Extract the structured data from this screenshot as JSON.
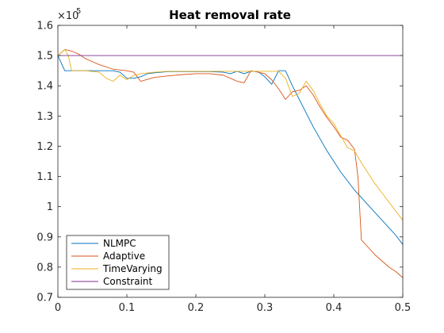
{
  "chart_data": {
    "type": "line",
    "title": "Heat removal rate",
    "xlabel": "",
    "ylabel": "",
    "xlim": [
      0,
      0.5
    ],
    "ylim": [
      0.7,
      1.6
    ],
    "y_exponent_label": "×10",
    "y_exponent_power": "5",
    "xticks": [
      "0",
      "0.1",
      "0.2",
      "0.3",
      "0.4",
      "0.5"
    ],
    "xtick_values": [
      0,
      0.1,
      0.2,
      0.3,
      0.4,
      0.5
    ],
    "yticks": [
      "0.7",
      "0.8",
      "0.9",
      "1",
      "1.1",
      "1.2",
      "1.3",
      "1.4",
      "1.5",
      "1.6"
    ],
    "ytick_values": [
      0.7,
      0.8,
      0.9,
      1.0,
      1.1,
      1.2,
      1.3,
      1.4,
      1.5,
      1.6
    ],
    "grid": false,
    "legend_position": "bottom-left",
    "series": [
      {
        "name": "NLMPC",
        "color": "#0072BD",
        "x": [
          0,
          0.01,
          0.02,
          0.04,
          0.06,
          0.08,
          0.09,
          0.1,
          0.11,
          0.12,
          0.13,
          0.14,
          0.16,
          0.18,
          0.2,
          0.22,
          0.24,
          0.25,
          0.26,
          0.27,
          0.28,
          0.29,
          0.3,
          0.31,
          0.32,
          0.33,
          0.34,
          0.35,
          0.36,
          0.37,
          0.38,
          0.39,
          0.4,
          0.41,
          0.42,
          0.43,
          0.44,
          0.45,
          0.46,
          0.47,
          0.48,
          0.49,
          0.5
        ],
        "y": [
          1.5,
          1.45,
          1.45,
          1.45,
          1.45,
          1.45,
          1.445,
          1.425,
          1.425,
          1.43,
          1.44,
          1.443,
          1.447,
          1.447,
          1.447,
          1.447,
          1.445,
          1.44,
          1.448,
          1.44,
          1.448,
          1.447,
          1.43,
          1.405,
          1.45,
          1.45,
          1.4,
          1.355,
          1.31,
          1.265,
          1.225,
          1.185,
          1.15,
          1.115,
          1.085,
          1.055,
          1.03,
          1.005,
          0.98,
          0.955,
          0.93,
          0.905,
          0.875
        ]
      },
      {
        "name": "Adaptive",
        "color": "#D95319",
        "x": [
          0,
          0.01,
          0.02,
          0.03,
          0.04,
          0.05,
          0.06,
          0.08,
          0.1,
          0.11,
          0.12,
          0.14,
          0.16,
          0.18,
          0.2,
          0.22,
          0.24,
          0.25,
          0.26,
          0.27,
          0.28,
          0.29,
          0.3,
          0.31,
          0.32,
          0.33,
          0.34,
          0.35,
          0.36,
          0.37,
          0.38,
          0.39,
          0.4,
          0.41,
          0.42,
          0.43,
          0.435,
          0.44,
          0.45,
          0.46,
          0.47,
          0.48,
          0.49,
          0.5
        ],
        "y": [
          1.5,
          1.52,
          1.515,
          1.505,
          1.49,
          1.48,
          1.47,
          1.455,
          1.45,
          1.445,
          1.415,
          1.428,
          1.433,
          1.437,
          1.44,
          1.44,
          1.435,
          1.425,
          1.415,
          1.41,
          1.45,
          1.445,
          1.44,
          1.42,
          1.39,
          1.355,
          1.38,
          1.385,
          1.4,
          1.37,
          1.33,
          1.295,
          1.265,
          1.23,
          1.22,
          1.19,
          1.1,
          0.89,
          0.865,
          0.84,
          0.82,
          0.8,
          0.785,
          0.765
        ]
      },
      {
        "name": "TimeVarying",
        "color": "#EDB120",
        "x": [
          0,
          0.005,
          0.01,
          0.015,
          0.02,
          0.03,
          0.04,
          0.06,
          0.07,
          0.08,
          0.09,
          0.1,
          0.11,
          0.12,
          0.14,
          0.16,
          0.18,
          0.2,
          0.22,
          0.24,
          0.26,
          0.28,
          0.3,
          0.32,
          0.33,
          0.34,
          0.35,
          0.36,
          0.37,
          0.38,
          0.39,
          0.4,
          0.41,
          0.42,
          0.43,
          0.44,
          0.45,
          0.46,
          0.47,
          0.48,
          0.49,
          0.5
        ],
        "y": [
          1.5,
          1.51,
          1.52,
          1.5,
          1.45,
          1.45,
          1.45,
          1.445,
          1.425,
          1.415,
          1.435,
          1.42,
          1.435,
          1.44,
          1.445,
          1.448,
          1.448,
          1.448,
          1.448,
          1.448,
          1.448,
          1.448,
          1.448,
          1.448,
          1.425,
          1.365,
          1.375,
          1.415,
          1.385,
          1.34,
          1.3,
          1.275,
          1.235,
          1.195,
          1.185,
          1.145,
          1.11,
          1.075,
          1.045,
          1.015,
          0.985,
          0.955
        ]
      },
      {
        "name": "Constraint",
        "color": "#7E2F8E",
        "x": [
          0,
          0.5
        ],
        "y": [
          1.5,
          1.5
        ]
      }
    ]
  }
}
